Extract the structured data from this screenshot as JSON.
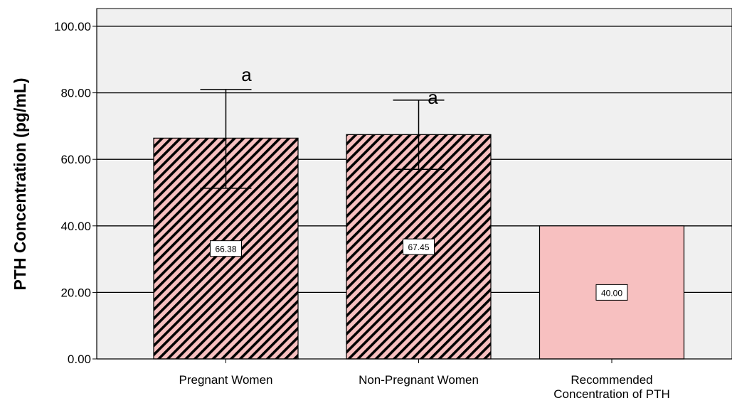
{
  "chart_data": {
    "type": "bar",
    "categories": [
      "Pregnant Women",
      "Non-Pregnant Women",
      "Recommended Concentration of PTH"
    ],
    "category_label_lines": [
      [
        "Pregnant Women"
      ],
      [
        "Non-Pregnant Women"
      ],
      [
        "Recommended",
        "Concentration of PTH"
      ]
    ],
    "values": [
      66.38,
      67.45,
      40.0
    ],
    "value_labels": [
      "66.38",
      "67.45",
      "40.00"
    ],
    "error_bars": [
      [
        51.3,
        81.0
      ],
      [
        57.0,
        77.8
      ],
      null
    ],
    "significance_labels": [
      "a",
      "a",
      ""
    ],
    "hatched": [
      true,
      true,
      false
    ],
    "ylabel": "PTH Concentration (pg/mL)",
    "xlabel": "",
    "ylim": [
      0,
      100
    ],
    "yticks": [
      "0.00",
      "20.00",
      "40.00",
      "60.00",
      "80.00",
      "100.00"
    ],
    "grid": true,
    "colors": {
      "bar_fill": "#f7c0c0",
      "hatch": "#000000",
      "plot_background": "#f0f0f0",
      "grid": "#000000"
    }
  }
}
